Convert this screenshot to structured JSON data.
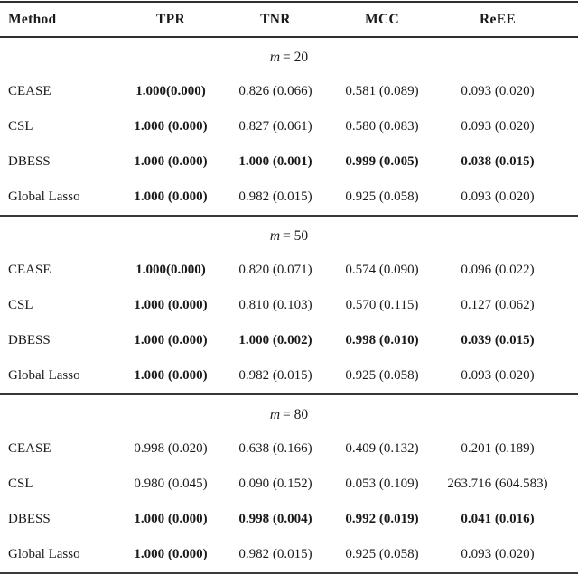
{
  "colors": {
    "background": "#ffffff",
    "text": "#1a1a1a",
    "rule": "#2e2e2e"
  },
  "table": {
    "headers": [
      "Method",
      "TPR",
      "TNR",
      "MCC",
      "ReEE"
    ],
    "sections": [
      {
        "label": {
          "var": "m",
          "rest": "= 20"
        },
        "rows": [
          {
            "method": "CEASE",
            "values": [
              "1.000(0.000)",
              "0.826 (0.066)",
              "0.581 (0.089)",
              "0.093 (0.020)"
            ],
            "bold": [
              true,
              false,
              false,
              false
            ]
          },
          {
            "method": "CSL",
            "values": [
              "1.000 (0.000)",
              "0.827 (0.061)",
              "0.580 (0.083)",
              "0.093 (0.020)"
            ],
            "bold": [
              true,
              false,
              false,
              false
            ]
          },
          {
            "method": "DBESS",
            "values": [
              "1.000 (0.000)",
              "1.000 (0.001)",
              "0.999 (0.005)",
              "0.038 (0.015)"
            ],
            "bold": [
              true,
              true,
              true,
              true
            ]
          },
          {
            "method": "Global Lasso",
            "values": [
              "1.000 (0.000)",
              "0.982 (0.015)",
              "0.925 (0.058)",
              "0.093 (0.020)"
            ],
            "bold": [
              true,
              false,
              false,
              false
            ]
          }
        ]
      },
      {
        "label": {
          "var": "m",
          "rest": "= 50"
        },
        "rows": [
          {
            "method": "CEASE",
            "values": [
              "1.000(0.000)",
              "0.820 (0.071)",
              "0.574 (0.090)",
              "0.096 (0.022)"
            ],
            "bold": [
              true,
              false,
              false,
              false
            ]
          },
          {
            "method": "CSL",
            "values": [
              "1.000 (0.000)",
              "0.810 (0.103)",
              "0.570 (0.115)",
              "0.127 (0.062)"
            ],
            "bold": [
              true,
              false,
              false,
              false
            ]
          },
          {
            "method": "DBESS",
            "values": [
              "1.000 (0.000)",
              "1.000 (0.002)",
              "0.998 (0.010)",
              "0.039 (0.015)"
            ],
            "bold": [
              true,
              true,
              true,
              true
            ]
          },
          {
            "method": "Global Lasso",
            "values": [
              "1.000 (0.000)",
              "0.982 (0.015)",
              "0.925 (0.058)",
              "0.093 (0.020)"
            ],
            "bold": [
              true,
              false,
              false,
              false
            ]
          }
        ]
      },
      {
        "label": {
          "var": "m",
          "rest": "= 80"
        },
        "rows": [
          {
            "method": "CEASE",
            "values": [
              "0.998 (0.020)",
              "0.638 (0.166)",
              "0.409 (0.132)",
              "0.201 (0.189)"
            ],
            "bold": [
              false,
              false,
              false,
              false
            ]
          },
          {
            "method": "CSL",
            "values": [
              "0.980 (0.045)",
              "0.090 (0.152)",
              "0.053 (0.109)",
              "263.716 (604.583)"
            ],
            "bold": [
              false,
              false,
              false,
              false
            ]
          },
          {
            "method": "DBESS",
            "values": [
              "1.000 (0.000)",
              "0.998 (0.004)",
              "0.992 (0.019)",
              "0.041 (0.016)"
            ],
            "bold": [
              true,
              true,
              true,
              true
            ]
          },
          {
            "method": "Global Lasso",
            "values": [
              "1.000 (0.000)",
              "0.982 (0.015)",
              "0.925 (0.058)",
              "0.093 (0.020)"
            ],
            "bold": [
              true,
              false,
              false,
              false
            ]
          }
        ]
      }
    ]
  }
}
